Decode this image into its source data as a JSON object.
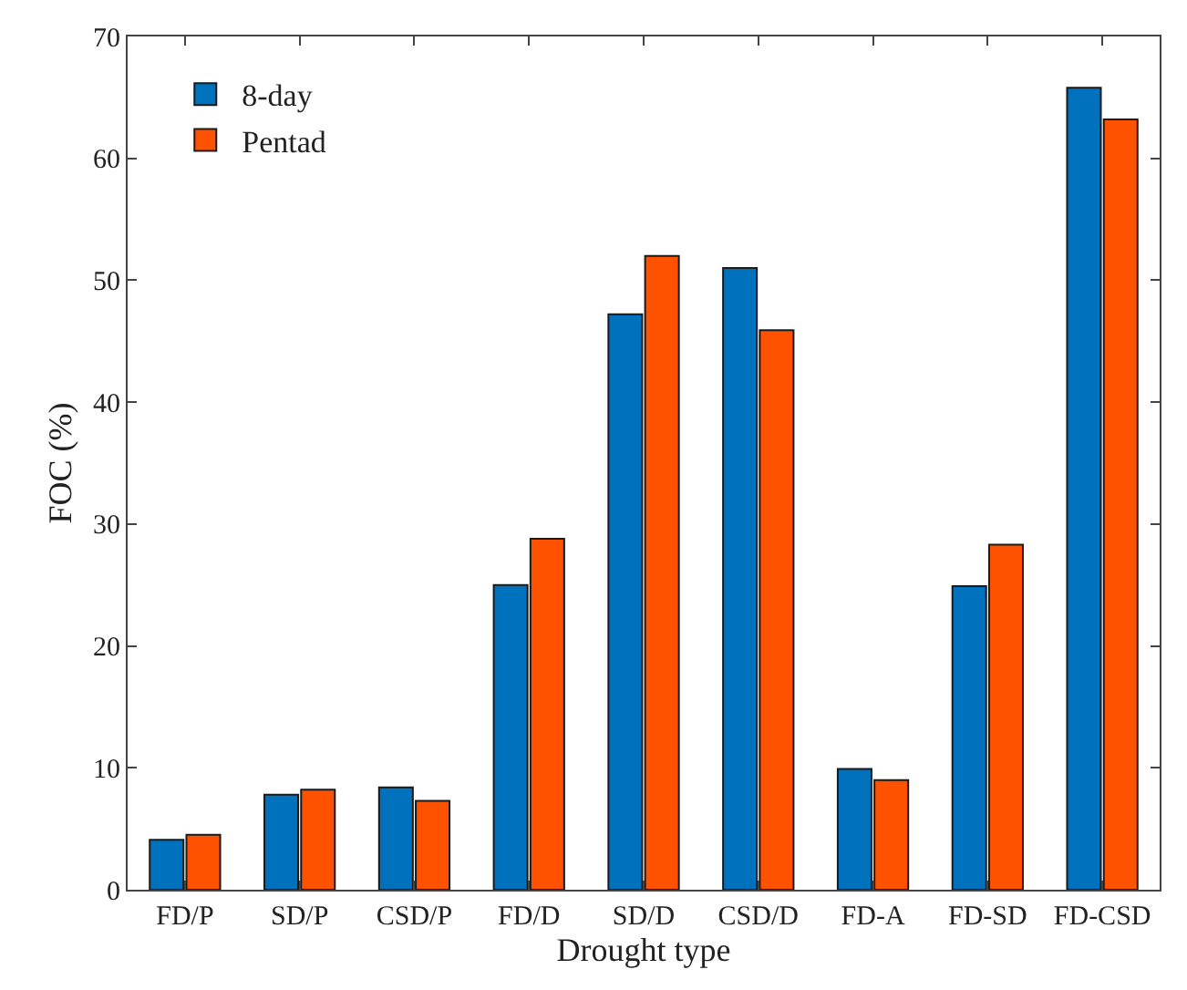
{
  "chart_data": {
    "type": "bar",
    "xlabel": "Drought type",
    "ylabel": "FOC (%)",
    "categories": [
      "FD/P",
      "SD/P",
      "CSD/P",
      "FD/D",
      "SD/D",
      "CSD/D",
      "FD-A",
      "FD-SD",
      "FD-CSD"
    ],
    "series": [
      {
        "name": "8-day",
        "color": "#0072bd",
        "values": [
          4.1,
          7.8,
          8.4,
          25.0,
          47.2,
          51.0,
          9.9,
          24.9,
          65.8
        ]
      },
      {
        "name": "Pentad",
        "color": "#ff5200",
        "values": [
          4.5,
          8.2,
          7.3,
          28.8,
          52.0,
          45.9,
          9.0,
          28.3,
          63.2
        ]
      }
    ],
    "ylim": [
      0,
      70
    ],
    "yticks": [
      0,
      10,
      20,
      30,
      40,
      50,
      60,
      70
    ],
    "legend": "top left"
  }
}
